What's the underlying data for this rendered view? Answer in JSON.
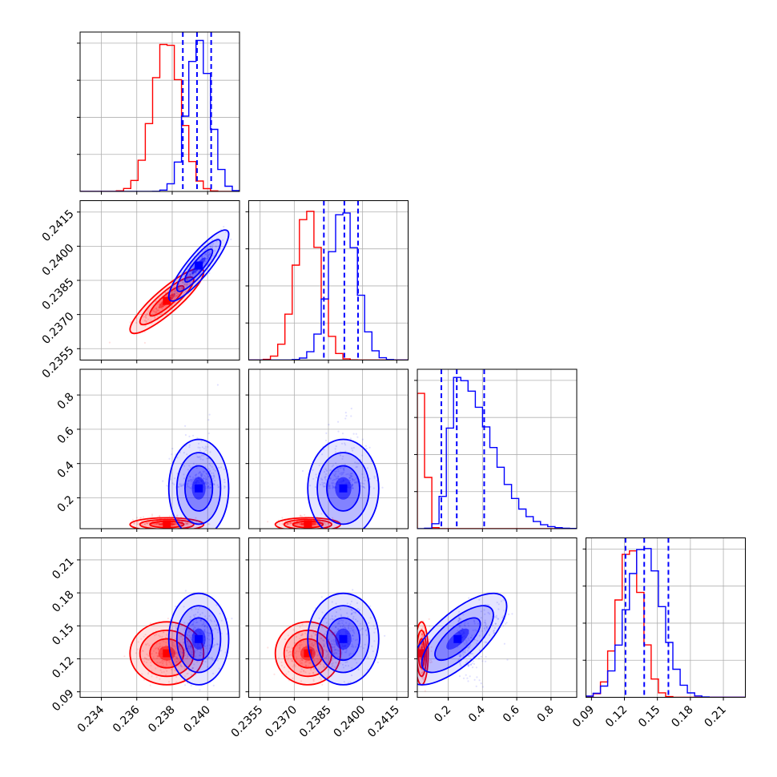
{
  "chart_data": {
    "type": "corner",
    "ndim": 4,
    "grid": true,
    "series": [
      {
        "color": "#ff0000",
        "means": [
          0.2377,
          0.2376,
          0.045,
          0.125
        ],
        "sigmas": [
          0.0008,
          0.00055,
          0.015,
          0.011
        ],
        "correlations": [
          [
            0,
            1,
            0.88
          ],
          [
            0,
            2,
            0.0
          ],
          [
            0,
            3,
            0.0
          ],
          [
            1,
            2,
            0.0
          ],
          [
            1,
            3,
            0.0
          ],
          [
            2,
            3,
            0.0
          ]
        ]
      },
      {
        "color": "#0000ff",
        "means": [
          0.2395,
          0.23915,
          0.255,
          0.138
        ],
        "sigmas": [
          0.00065,
          0.0006,
          0.11,
          0.016
        ],
        "correlations": [
          [
            0,
            1,
            0.88
          ],
          [
            0,
            2,
            0.0
          ],
          [
            0,
            3,
            0.0
          ],
          [
            1,
            2,
            0.0
          ],
          [
            1,
            3,
            0.0
          ],
          [
            2,
            3,
            0.72
          ]
        ],
        "quantiles": [
          [
            0.2386,
            0.2394,
            0.2402
          ],
          [
            0.2383,
            0.2392,
            0.2398
          ],
          [
            0.16,
            0.25,
            0.41
          ],
          [
            0.121,
            0.138,
            0.16
          ]
        ]
      }
    ],
    "axes": [
      {
        "range": [
          0.2328,
          0.2418
        ],
        "ticks": [
          "0.234",
          "0.236",
          "0.238",
          "0.240"
        ]
      },
      {
        "range": [
          0.235,
          0.242
        ],
        "ticks": [
          "0.2355",
          "0.2370",
          "0.2385",
          "0.2400",
          "0.2415"
        ]
      },
      {
        "range": [
          0.02,
          0.95
        ],
        "ticks": [
          "0.2",
          "0.4",
          "0.6",
          "0.8"
        ]
      },
      {
        "range": [
          0.085,
          0.23
        ],
        "ticks": [
          "0.09",
          "0.12",
          "0.15",
          "0.18",
          "0.21"
        ]
      }
    ]
  }
}
